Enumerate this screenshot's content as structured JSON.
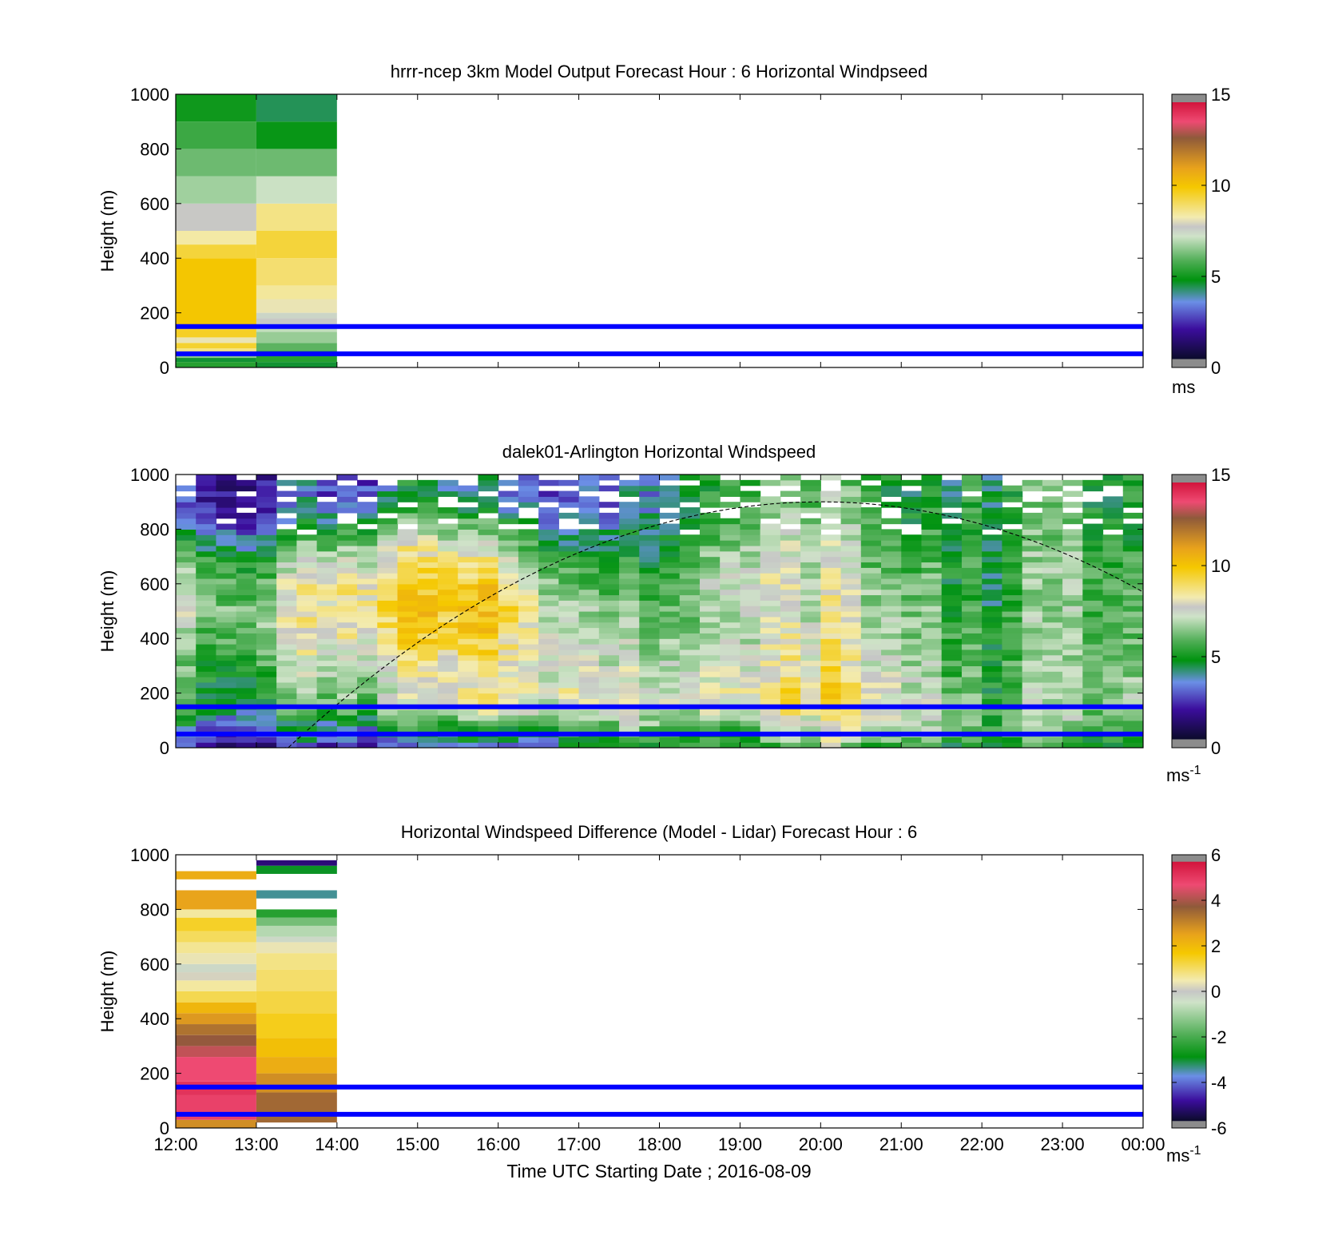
{
  "figure": {
    "xlabel": "Time UTC  Starting Date ; 2016-08-09",
    "x_ticks": [
      "12:00",
      "13:00",
      "14:00",
      "15:00",
      "16:00",
      "17:00",
      "18:00",
      "19:00",
      "20:00",
      "21:00",
      "22:00",
      "23:00",
      "00:00"
    ],
    "y_ticks": [
      "0",
      "200",
      "400",
      "600",
      "800",
      "1000"
    ],
    "ylabel": "Height (m)",
    "reference_lines_m": [
      50,
      150
    ],
    "reference_line_color": "#0000ff"
  },
  "chart_data": [
    {
      "type": "heatmap",
      "title": "hrrr-ncep 3km Model Output   Forecast Hour : 6 Horizontal Windpseed",
      "ylabel": "Height (m)",
      "xlim_hours": [
        0,
        12
      ],
      "ylim": [
        0,
        1000
      ],
      "colorbar": {
        "min": 0,
        "max": 15,
        "ticks": [
          "0",
          "5",
          "10",
          "15"
        ],
        "unit": "ms"
      },
      "columns": [
        {
          "x_hours": [
            0,
            1
          ],
          "cells": [
            {
              "y0": 0,
              "y1": 20,
              "v": 5.0
            },
            {
              "y0": 20,
              "y1": 35,
              "v": 4.3
            },
            {
              "y0": 35,
              "y1": 55,
              "v": 6.2
            },
            {
              "y0": 55,
              "y1": 70,
              "v": 8.5
            },
            {
              "y0": 70,
              "y1": 90,
              "v": 9.3
            },
            {
              "y0": 90,
              "y1": 110,
              "v": 8.0
            },
            {
              "y0": 110,
              "y1": 140,
              "v": 9.4
            },
            {
              "y0": 140,
              "y1": 400,
              "v": 9.8
            },
            {
              "y0": 400,
              "y1": 450,
              "v": 9.2
            },
            {
              "y0": 450,
              "y1": 500,
              "v": 8.2
            },
            {
              "y0": 500,
              "y1": 600,
              "v": 7.6
            },
            {
              "y0": 600,
              "y1": 700,
              "v": 6.5
            },
            {
              "y0": 700,
              "y1": 800,
              "v": 5.9
            },
            {
              "y0": 800,
              "y1": 900,
              "v": 5.3
            },
            {
              "y0": 900,
              "y1": 1000,
              "v": 4.7
            }
          ]
        },
        {
          "x_hours": [
            1,
            2
          ],
          "cells": [
            {
              "y0": 0,
              "y1": 20,
              "v": 4.3
            },
            {
              "y0": 20,
              "y1": 60,
              "v": 5.0
            },
            {
              "y0": 60,
              "y1": 90,
              "v": 5.7
            },
            {
              "y0": 90,
              "y1": 130,
              "v": 6.4
            },
            {
              "y0": 130,
              "y1": 160,
              "v": 6.9
            },
            {
              "y0": 160,
              "y1": 180,
              "v": 7.6
            },
            {
              "y0": 180,
              "y1": 200,
              "v": 7.3
            },
            {
              "y0": 200,
              "y1": 250,
              "v": 8.0
            },
            {
              "y0": 250,
              "y1": 300,
              "v": 8.3
            },
            {
              "y0": 300,
              "y1": 400,
              "v": 8.7
            },
            {
              "y0": 400,
              "y1": 500,
              "v": 9.2
            },
            {
              "y0": 500,
              "y1": 600,
              "v": 8.5
            },
            {
              "y0": 600,
              "y1": 700,
              "v": 7.0
            },
            {
              "y0": 700,
              "y1": 800,
              "v": 5.9
            },
            {
              "y0": 800,
              "y1": 900,
              "v": 4.6
            },
            {
              "y0": 900,
              "y1": 1000,
              "v": 4.1
            }
          ]
        }
      ]
    },
    {
      "type": "heatmap",
      "title": "dalek01-Arlington  Horizontal Windspeed",
      "ylabel": "Height (m)",
      "xlim_hours": [
        0,
        12
      ],
      "ylim": [
        0,
        1000
      ],
      "colorbar": {
        "min": 0,
        "max": 15,
        "ticks": [
          "0",
          "5",
          "10",
          "15"
        ],
        "unit": "ms-1"
      },
      "column_width_hours": 0.25,
      "bin_height_m": 20,
      "profiles": {
        "h_m": [
          0,
          30,
          60,
          100,
          150,
          200,
          280,
          400,
          500,
          600,
          700,
          800,
          900,
          1000
        ],
        "rows": [
          [
            1.5,
            2.5,
            3.0,
            3.5,
            4.5,
            5.0,
            5.0,
            5.5,
            6.5,
            6.0,
            5.5,
            3.5,
            2.0,
            2.0
          ],
          [
            1.5,
            2.5,
            3.0,
            3.5,
            5.0,
            5.0,
            5.5,
            6.5,
            6.5,
            6.0,
            5.0,
            3.0,
            2.0,
            2.0
          ],
          [
            2.0,
            3.0,
            3.5,
            4.5,
            6.0,
            6.5,
            7.0,
            8.0,
            8.5,
            8.5,
            7.0,
            5.0,
            3.0,
            3.0
          ],
          [
            2.5,
            3.5,
            4.0,
            5.5,
            7.0,
            7.5,
            8.0,
            9.0,
            9.5,
            9.5,
            8.5,
            6.5,
            4.5,
            4.0
          ],
          [
            3.0,
            4.0,
            4.5,
            6.5,
            7.5,
            8.0,
            8.0,
            9.0,
            9.5,
            9.0,
            7.5,
            5.5,
            3.5,
            3.0
          ],
          [
            4.0,
            4.5,
            5.0,
            6.5,
            7.5,
            8.0,
            7.5,
            7.0,
            6.5,
            5.5,
            4.5,
            3.5,
            2.5,
            2.5
          ],
          [
            4.5,
            5.0,
            5.0,
            6.0,
            6.5,
            6.5,
            6.0,
            5.5,
            5.0,
            4.5,
            4.0,
            3.5,
            3.0,
            3.0
          ],
          [
            5.0,
            5.5,
            5.5,
            7.0,
            8.0,
            8.5,
            8.0,
            7.5,
            7.5,
            8.0,
            7.5,
            6.5,
            6.0,
            6.0
          ],
          [
            6.0,
            7.0,
            7.5,
            8.0,
            9.0,
            9.0,
            8.5,
            8.0,
            7.5,
            7.5,
            7.0,
            7.0,
            6.5,
            6.0
          ],
          [
            5.5,
            6.5,
            7.0,
            7.5,
            8.0,
            8.0,
            7.5,
            7.0,
            7.0,
            6.5,
            6.0,
            5.5,
            5.0,
            5.0
          ],
          [
            5.0,
            5.5,
            6.0,
            6.0,
            6.0,
            5.5,
            5.5,
            5.5,
            5.0,
            5.0,
            5.0,
            5.0,
            5.0,
            5.0
          ],
          [
            5.0,
            5.0,
            5.5,
            6.0,
            6.5,
            6.5,
            6.0,
            6.0,
            6.0,
            6.0,
            6.0,
            5.5,
            5.5,
            5.5
          ],
          [
            5.5,
            6.0,
            6.5,
            7.0,
            7.5,
            7.5,
            7.0,
            6.5,
            6.5,
            6.5,
            6.0,
            5.5,
            5.5,
            5.5
          ]
        ],
        "seed": 2016
      },
      "sunrise_curve": {
        "style": "dashed",
        "rise_hour": 1.0,
        "peak_hour": 8.0,
        "peak_m": 900,
        "end_value_m": 570
      }
    },
    {
      "type": "heatmap",
      "title": "Horizontal Windspeed Difference (Model - Lidar) Forecast Hour : 6",
      "ylabel": "Height (m)",
      "xlim_hours": [
        0,
        12
      ],
      "ylim": [
        0,
        1000
      ],
      "colorbar": {
        "min": -6,
        "max": 6,
        "ticks": [
          "-6",
          "-4",
          "-2",
          "0",
          "2",
          "4",
          "6"
        ],
        "unit": "ms-1"
      },
      "columns": [
        {
          "x_hours": [
            0,
            1
          ],
          "cells": [
            {
              "y0": 0,
              "y1": 30,
              "v": 3.0
            },
            {
              "y0": 30,
              "y1": 120,
              "v": 5.0
            },
            {
              "y0": 120,
              "y1": 170,
              "v": 5.3
            },
            {
              "y0": 170,
              "y1": 260,
              "v": 4.8
            },
            {
              "y0": 260,
              "y1": 300,
              "v": 4.4
            },
            {
              "y0": 300,
              "y1": 340,
              "v": 4.0
            },
            {
              "y0": 340,
              "y1": 380,
              "v": 3.5
            },
            {
              "y0": 380,
              "y1": 420,
              "v": 2.8
            },
            {
              "y0": 420,
              "y1": 460,
              "v": 2.2
            },
            {
              "y0": 460,
              "y1": 500,
              "v": 1.2
            },
            {
              "y0": 500,
              "y1": 540,
              "v": 0.6
            },
            {
              "y0": 540,
              "y1": 570,
              "v": 0.2
            },
            {
              "y0": 570,
              "y1": 600,
              "v": -0.2
            },
            {
              "y0": 600,
              "y1": 640,
              "v": 0.4
            },
            {
              "y0": 640,
              "y1": 680,
              "v": 0.7
            },
            {
              "y0": 680,
              "y1": 720,
              "v": 1.1
            },
            {
              "y0": 720,
              "y1": 770,
              "v": 1.5
            },
            {
              "y0": 770,
              "y1": 800,
              "v": 0.6
            },
            {
              "y0": 800,
              "y1": 870,
              "v": 2.6
            },
            {
              "y0": 910,
              "y1": 940,
              "v": 2.4
            }
          ]
        },
        {
          "x_hours": [
            1,
            2
          ],
          "cells": [
            {
              "y0": 20,
              "y1": 130,
              "v": 3.7
            },
            {
              "y0": 130,
              "y1": 200,
              "v": 3.0
            },
            {
              "y0": 200,
              "y1": 260,
              "v": 2.4
            },
            {
              "y0": 260,
              "y1": 330,
              "v": 2.0
            },
            {
              "y0": 330,
              "y1": 420,
              "v": 1.6
            },
            {
              "y0": 420,
              "y1": 500,
              "v": 1.3
            },
            {
              "y0": 500,
              "y1": 580,
              "v": 1.0
            },
            {
              "y0": 580,
              "y1": 640,
              "v": 0.8
            },
            {
              "y0": 640,
              "y1": 680,
              "v": 0.4
            },
            {
              "y0": 680,
              "y1": 700,
              "v": -0.2
            },
            {
              "y0": 700,
              "y1": 740,
              "v": -0.6
            },
            {
              "y0": 740,
              "y1": 770,
              "v": -1.2
            },
            {
              "y0": 770,
              "y1": 800,
              "v": -2.0
            },
            {
              "y0": 840,
              "y1": 870,
              "v": -3.0
            },
            {
              "y0": 930,
              "y1": 960,
              "v": -2.5
            },
            {
              "y0": 960,
              "y1": 980,
              "v": -5.0
            }
          ]
        }
      ]
    }
  ]
}
